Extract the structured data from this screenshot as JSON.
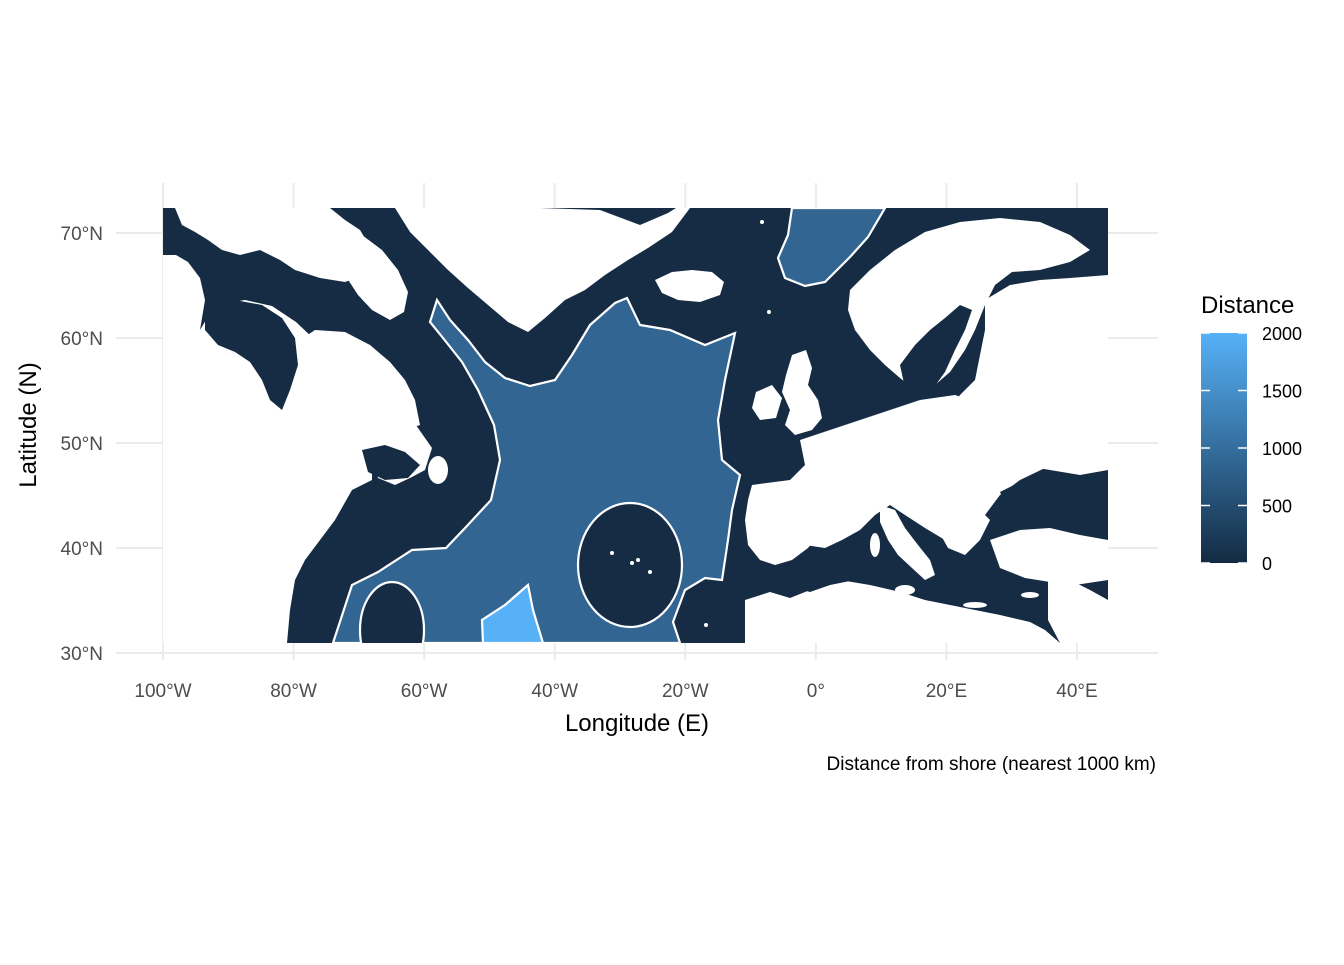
{
  "chart_data": {
    "type": "map",
    "xlabel": "Longitude (E)",
    "ylabel": "Latitude (N)",
    "caption": "Distance from shore (nearest 1000 km)",
    "xlim": [
      -107,
      45
    ],
    "ylim": [
      29,
      73
    ],
    "x_ticks": [
      {
        "value": -100,
        "label": "100°W"
      },
      {
        "value": -80,
        "label": "80°W"
      },
      {
        "value": -60,
        "label": "60°W"
      },
      {
        "value": -40,
        "label": "40°W"
      },
      {
        "value": -20,
        "label": "20°W"
      },
      {
        "value": 0,
        "label": "0°"
      },
      {
        "value": 20,
        "label": "20°E"
      },
      {
        "value": 40,
        "label": "40°E"
      }
    ],
    "y_ticks": [
      {
        "value": 30,
        "label": "30°N"
      },
      {
        "value": 40,
        "label": "40°N"
      },
      {
        "value": 50,
        "label": "50°N"
      },
      {
        "value": 60,
        "label": "60°N"
      },
      {
        "value": 70,
        "label": "70°N"
      }
    ],
    "grid": true,
    "legend": {
      "title": "Distance",
      "position": "right",
      "min": 0,
      "max": 2000,
      "breaks": [
        0,
        500,
        1000,
        1500,
        2000
      ],
      "color_low": "#132B43",
      "color_high": "#56B1F7"
    },
    "distance_bands_km": [
      0,
      1000,
      2000
    ],
    "band_colors": {
      "0": "#162c45",
      "1000": "#336593",
      "2000": "#56b1f7"
    },
    "land_color": "#ffffff",
    "contour_color": "#ffffff"
  }
}
